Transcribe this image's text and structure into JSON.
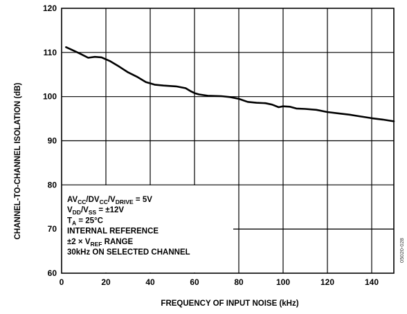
{
  "chart_data": {
    "type": "line",
    "title": "",
    "xlabel": "FREQUENCY OF INPUT NOISE (kHz)",
    "ylabel": "CHANNEL-TO-CHANNEL ISOLATION (dB)",
    "xlim": [
      0,
      150
    ],
    "ylim": [
      60,
      120
    ],
    "xticks": [
      "0",
      "20",
      "40",
      "60",
      "80",
      "100",
      "120",
      "140"
    ],
    "yticks": [
      "60",
      "70",
      "80",
      "90",
      "100",
      "110",
      "120"
    ],
    "grid": true,
    "legend": "none",
    "series": [
      {
        "x": [
          2,
          5,
          8,
          12,
          15,
          18,
          22,
          26,
          30,
          34,
          38,
          42,
          46,
          52,
          56,
          58,
          60,
          62,
          66,
          72,
          76,
          80,
          84,
          88,
          92,
          95,
          98,
          100,
          103,
          106,
          110,
          115,
          120,
          125,
          130,
          135,
          140,
          145,
          150
        ],
        "values": [
          111.2,
          110.5,
          109.8,
          108.8,
          109.0,
          108.9,
          108.0,
          106.8,
          105.5,
          104.5,
          103.3,
          102.7,
          102.5,
          102.3,
          101.9,
          101.3,
          100.8,
          100.5,
          100.2,
          100.1,
          99.9,
          99.5,
          98.8,
          98.6,
          98.5,
          98.2,
          97.6,
          97.8,
          97.7,
          97.3,
          97.2,
          97.0,
          96.5,
          96.2,
          95.9,
          95.5,
          95.1,
          94.8,
          94.4
        ],
        "color": "#000000"
      }
    ],
    "annotation_lines": [
      {
        "main": "AV",
        "sub": "CC",
        "rest": [
          [
            "/DV",
            ""
          ],
          [
            "CC",
            "sub"
          ],
          [
            "/V",
            ""
          ],
          [
            "DRIVE",
            "sub"
          ],
          [
            " = 5V",
            ""
          ]
        ]
      },
      {
        "main": "V",
        "sub": "DD",
        "rest": [
          [
            "/V",
            ""
          ],
          [
            "SS",
            "sub"
          ],
          [
            " = ±12V",
            ""
          ]
        ]
      },
      {
        "main": "T",
        "sub": "A",
        "rest": [
          [
            " = 25°C",
            ""
          ]
        ]
      },
      {
        "main": "INTERNAL REFERENCE",
        "sub": "",
        "rest": []
      },
      {
        "main": "±2 × V",
        "sub": "REF",
        "rest": [
          [
            " RANGE",
            ""
          ]
        ]
      },
      {
        "main": "30kHz ON SELECTED CHANNEL",
        "sub": "",
        "rest": []
      }
    ],
    "figure_id": "05020-028"
  }
}
